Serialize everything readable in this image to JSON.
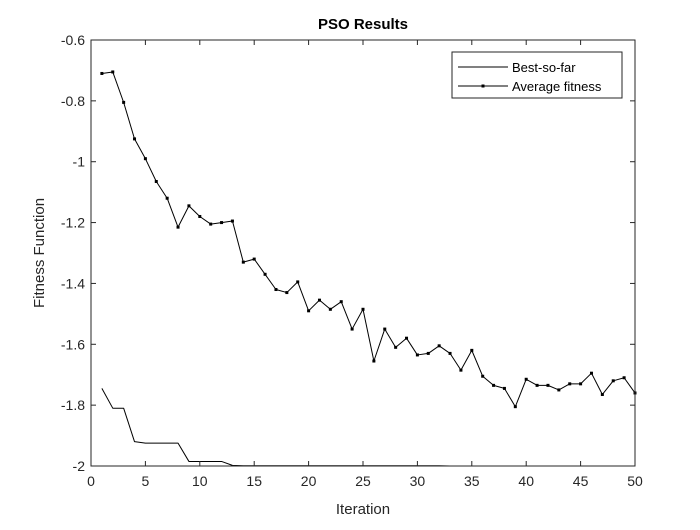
{
  "chart_data": {
    "type": "line",
    "title": "PSO Results",
    "xlabel": "Iteration",
    "ylabel": "Fitness Function",
    "xlim": [
      0,
      50
    ],
    "ylim": [
      -2,
      -0.6
    ],
    "xticks": [
      0,
      5,
      10,
      15,
      20,
      25,
      30,
      35,
      40,
      45,
      50
    ],
    "yticks": [
      -2,
      -1.8,
      -1.6,
      -1.4,
      -1.2,
      -1,
      -0.8,
      -0.6
    ],
    "xtick_labels": [
      "0",
      "5",
      "10",
      "15",
      "20",
      "25",
      "30",
      "35",
      "40",
      "45",
      "50"
    ],
    "ytick_labels": [
      "-2",
      "-1.8",
      "-1.6",
      "-1.4",
      "-1.2",
      "-1",
      "-0.8",
      "-0.6"
    ],
    "grid": false,
    "legend_position": "top-right",
    "series": [
      {
        "name": "Best-so-far",
        "marker": "none",
        "color": "#000000",
        "x": [
          1,
          2,
          3,
          4,
          5,
          6,
          7,
          8,
          9,
          10,
          11,
          12,
          13,
          14,
          15,
          16,
          17,
          18,
          19,
          20,
          21,
          22,
          23,
          24,
          25,
          26,
          27,
          28,
          29,
          30,
          31,
          32,
          33,
          34,
          35,
          36,
          37,
          38,
          39,
          40,
          41,
          42,
          43,
          44,
          45,
          46,
          47,
          48,
          49,
          50
        ],
        "y": [
          -1.745,
          -1.81,
          -1.81,
          -1.92,
          -1.925,
          -1.925,
          -1.925,
          -1.925,
          -1.985,
          -1.985,
          -1.985,
          -1.985,
          -1.998,
          -1.999,
          -1.999,
          -1.999,
          -1.999,
          -1.999,
          -1.999,
          -1.999,
          -1.999,
          -1.999,
          -1.999,
          -1.999,
          -1.999,
          -1.999,
          -1.999,
          -1.999,
          -1.999,
          -1.999,
          -1.999,
          -1.999,
          -2.0,
          -2.0,
          -2.0,
          -2.0,
          -2.0,
          -2.0,
          -2.0,
          -2.0,
          -2.0,
          -2.0,
          -2.0,
          -2.0,
          -2.0,
          -2.0,
          -2.0,
          -2.0,
          -2.0,
          -2.0
        ]
      },
      {
        "name": "Average fitness",
        "marker": "square",
        "color": "#000000",
        "x": [
          1,
          2,
          3,
          4,
          5,
          6,
          7,
          8,
          9,
          10,
          11,
          12,
          13,
          14,
          15,
          16,
          17,
          18,
          19,
          20,
          21,
          22,
          23,
          24,
          25,
          26,
          27,
          28,
          29,
          30,
          31,
          32,
          33,
          34,
          35,
          36,
          37,
          38,
          39,
          40,
          41,
          42,
          43,
          44,
          45,
          46,
          47,
          48,
          49,
          50
        ],
        "y": [
          -0.71,
          -0.705,
          -0.805,
          -0.925,
          -0.99,
          -1.065,
          -1.12,
          -1.215,
          -1.145,
          -1.18,
          -1.205,
          -1.2,
          -1.195,
          -1.33,
          -1.32,
          -1.37,
          -1.42,
          -1.43,
          -1.395,
          -1.49,
          -1.455,
          -1.485,
          -1.46,
          -1.55,
          -1.485,
          -1.655,
          -1.55,
          -1.61,
          -1.58,
          -1.635,
          -1.63,
          -1.605,
          -1.63,
          -1.685,
          -1.62,
          -1.705,
          -1.735,
          -1.745,
          -1.805,
          -1.715,
          -1.735,
          -1.735,
          -1.75,
          -1.73,
          -1.73,
          -1.695,
          -1.765,
          -1.72,
          -1.71,
          -1.76
        ]
      }
    ]
  }
}
